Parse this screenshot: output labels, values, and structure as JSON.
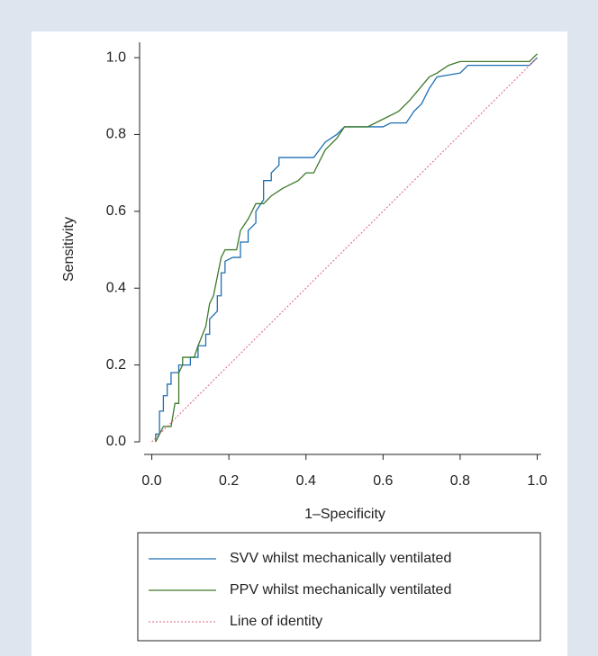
{
  "chart_data": {
    "type": "line",
    "xlabel": "1–Specificity",
    "ylabel": "Sensitivity",
    "xlim": [
      -0.02,
      1.01
    ],
    "ylim": [
      0,
      1.04
    ],
    "xticks": [
      {
        "value": 0,
        "label": "0.0"
      },
      {
        "value": 0.2,
        "label": "0.2"
      },
      {
        "value": 0.4,
        "label": "0.4"
      },
      {
        "value": 0.6,
        "label": "0.6"
      },
      {
        "value": 0.8,
        "label": "0.8"
      },
      {
        "value": 1,
        "label": "1.0"
      }
    ],
    "yticks": [
      {
        "value": 0,
        "label": "0.0"
      },
      {
        "value": 0.2,
        "label": "0.2"
      },
      {
        "value": 0.4,
        "label": "0.4"
      },
      {
        "value": 0.6,
        "label": "0.6"
      },
      {
        "value": 0.8,
        "label": "0.8"
      },
      {
        "value": 1,
        "label": "1.0"
      }
    ],
    "grid": false,
    "series": [
      {
        "name": "SVV whilst mechanically ventilated",
        "color": "#1f6fb4",
        "linestyle": "solid",
        "x": [
          0.01,
          0.01,
          0.02,
          0.02,
          0.03,
          0.03,
          0.04,
          0.04,
          0.05,
          0.05,
          0.07,
          0.07,
          0.1,
          0.1,
          0.12,
          0.12,
          0.14,
          0.14,
          0.15,
          0.15,
          0.17,
          0.17,
          0.18,
          0.18,
          0.19,
          0.19,
          0.21,
          0.23,
          0.23,
          0.25,
          0.25,
          0.27,
          0.27,
          0.29,
          0.29,
          0.31,
          0.31,
          0.33,
          0.33,
          0.42,
          0.45,
          0.48,
          0.5,
          0.6,
          0.62,
          0.66,
          0.68,
          0.7,
          0.72,
          0.74,
          0.8,
          0.82,
          0.98,
          1.0
        ],
        "y": [
          0,
          0.02,
          0.02,
          0.08,
          0.08,
          0.12,
          0.12,
          0.15,
          0.15,
          0.18,
          0.18,
          0.2,
          0.2,
          0.22,
          0.22,
          0.25,
          0.25,
          0.28,
          0.28,
          0.32,
          0.34,
          0.38,
          0.38,
          0.44,
          0.44,
          0.47,
          0.48,
          0.48,
          0.52,
          0.52,
          0.55,
          0.57,
          0.6,
          0.63,
          0.68,
          0.68,
          0.7,
          0.72,
          0.74,
          0.74,
          0.78,
          0.8,
          0.82,
          0.82,
          0.83,
          0.83,
          0.86,
          0.88,
          0.92,
          0.95,
          0.96,
          0.98,
          0.98,
          1.0
        ]
      },
      {
        "name": "PPV whilst mechanically ventilated",
        "color": "#3d7a2a",
        "linestyle": "solid",
        "x": [
          0.01,
          0.02,
          0.03,
          0.05,
          0.06,
          0.07,
          0.07,
          0.08,
          0.08,
          0.11,
          0.12,
          0.14,
          0.15,
          0.16,
          0.17,
          0.18,
          0.19,
          0.22,
          0.23,
          0.25,
          0.27,
          0.29,
          0.31,
          0.34,
          0.38,
          0.4,
          0.42,
          0.45,
          0.48,
          0.5,
          0.56,
          0.6,
          0.64,
          0.67,
          0.72,
          0.74,
          0.77,
          0.8,
          0.98,
          0.99,
          1.0
        ],
        "y": [
          0,
          0.02,
          0.04,
          0.04,
          0.1,
          0.1,
          0.18,
          0.2,
          0.22,
          0.22,
          0.25,
          0.3,
          0.36,
          0.38,
          0.43,
          0.48,
          0.5,
          0.5,
          0.55,
          0.58,
          0.62,
          0.62,
          0.64,
          0.66,
          0.68,
          0.7,
          0.7,
          0.76,
          0.79,
          0.82,
          0.82,
          0.84,
          0.86,
          0.89,
          0.95,
          0.96,
          0.98,
          0.99,
          0.99,
          1.0,
          1.01
        ]
      },
      {
        "name": "Line of identity",
        "color": "#e0607a",
        "linestyle": "dotted",
        "x": [
          0,
          1
        ],
        "y": [
          0,
          1
        ]
      }
    ]
  }
}
